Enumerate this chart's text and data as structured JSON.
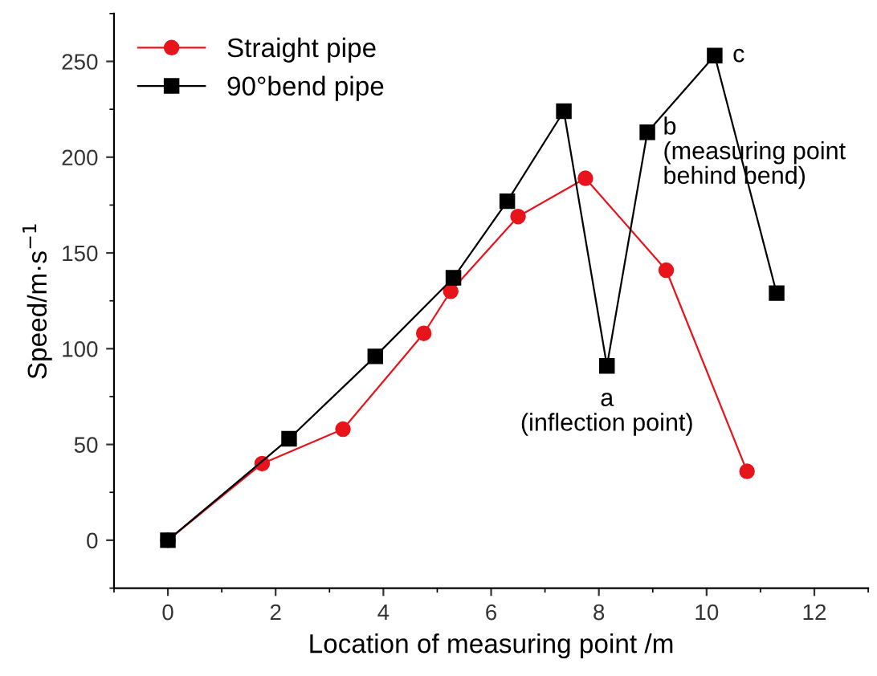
{
  "chart_data": {
    "type": "line",
    "xlabel": "Location of measuring point /m",
    "ylabel": "Speed/m·s$^{−1}$",
    "xlim": [
      -1,
      13
    ],
    "xticks": [
      0,
      2,
      4,
      6,
      8,
      10,
      12
    ],
    "ylim": [
      -25,
      275
    ],
    "yticks": [
      0,
      50,
      100,
      150,
      200,
      250
    ],
    "grid": false,
    "legend": "top left",
    "line_style": "solid",
    "series": [
      {
        "name": "Straight pipe",
        "color": "#e8141c",
        "marker": "circle",
        "x": [
          0,
          1.75,
          3.25,
          4.75,
          5.25,
          6.5,
          7.75,
          9.25,
          10.75
        ],
        "values": [
          0,
          40,
          58,
          108,
          130,
          169,
          189,
          141,
          36
        ]
      },
      {
        "name": "90°bend pipe",
        "color": "#000000",
        "marker": "square",
        "x": [
          0,
          2.25,
          3.85,
          5.3,
          6.3,
          7.35,
          8.15,
          8.9,
          10.15,
          11.3
        ],
        "values": [
          0,
          53,
          96,
          137,
          177,
          224,
          91,
          213,
          253,
          129
        ]
      }
    ],
    "annotations": [
      {
        "text": "a\n(inflection point)",
        "x": 8.15,
        "y": 91
      },
      {
        "text": "b\n(measuring point\nbehind bend)",
        "x": 8.9,
        "y": 213
      },
      {
        "text": "c",
        "x": 10.15,
        "y": 253
      }
    ]
  }
}
